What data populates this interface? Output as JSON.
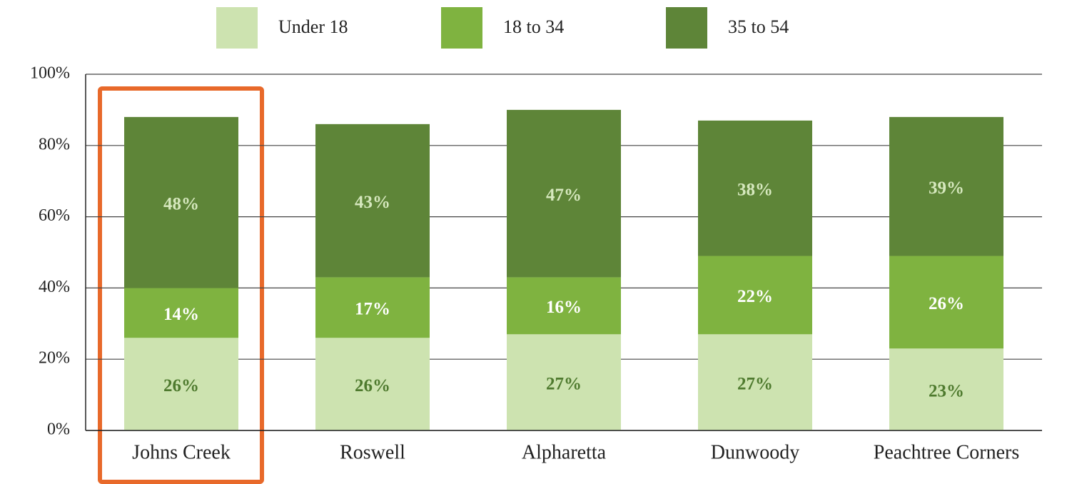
{
  "chart_data": {
    "type": "stacked_bar",
    "categories": [
      "Johns Creek",
      "Roswell",
      "Alpharetta",
      "Dunwoody",
      "Peachtree Corners"
    ],
    "series": [
      {
        "name": "Under 18",
        "color": "#cde3b0",
        "values": [
          26,
          26,
          27,
          27,
          23
        ],
        "value_labels": [
          "26%",
          "26%",
          "27%",
          "27%",
          "23%"
        ]
      },
      {
        "name": "18 to 34",
        "color": "#7fb340",
        "values": [
          14,
          17,
          16,
          22,
          26
        ],
        "value_labels": [
          "14%",
          "17%",
          "16%",
          "22%",
          "26%"
        ]
      },
      {
        "name": "35 to 54",
        "color": "#5e8538",
        "values": [
          48,
          43,
          47,
          38,
          39
        ],
        "value_labels": [
          "48%",
          "43%",
          "47%",
          "38%",
          "39%"
        ]
      }
    ],
    "ylim": [
      0,
      100
    ],
    "yticks": [
      {
        "value": 0,
        "label": "0%"
      },
      {
        "value": 20,
        "label": "20%"
      },
      {
        "value": 40,
        "label": "40%"
      },
      {
        "value": 60,
        "label": "60%"
      },
      {
        "value": 80,
        "label": "80%"
      },
      {
        "value": 100,
        "label": "100%"
      }
    ],
    "grid": true,
    "legend": "top"
  }
}
